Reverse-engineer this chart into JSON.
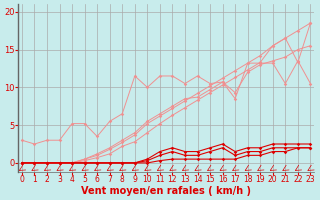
{
  "background_color": "#c8ecec",
  "grid_color": "#aaaaaa",
  "xlabel": "Vent moyen/en rafales ( km/h )",
  "yticks": [
    0,
    5,
    10,
    15,
    20
  ],
  "xticks": [
    0,
    1,
    2,
    3,
    4,
    5,
    6,
    7,
    8,
    9,
    10,
    11,
    12,
    13,
    14,
    15,
    16,
    17,
    18,
    19,
    20,
    21,
    22,
    23
  ],
  "xlim": [
    -0.3,
    23.3
  ],
  "ylim": [
    -1.2,
    21
  ],
  "lines_light": [
    [
      0,
      1,
      2,
      3,
      4,
      5,
      6,
      7,
      8,
      9,
      10,
      11,
      12,
      13,
      14,
      15,
      16,
      17,
      18,
      19,
      20,
      21,
      22,
      23
    ],
    [
      3.0,
      2.5,
      3.0,
      3.0,
      5.2,
      5.2,
      3.5,
      5.5,
      6.5,
      11.5,
      10.0,
      11.5,
      11.5,
      10.5,
      11.5,
      10.5,
      10.7,
      8.5,
      13.2,
      13.2,
      13.2,
      10.5,
      13.5,
      10.5
    ]
  ],
  "lines_light2": [
    [
      0,
      1,
      2,
      3,
      4,
      5,
      6,
      7,
      8,
      9,
      10,
      11,
      12,
      13,
      14,
      15,
      16,
      17,
      18,
      19,
      20,
      21,
      22,
      23
    ],
    [
      0.0,
      0.0,
      0.0,
      0.0,
      0.0,
      0.3,
      0.7,
      1.2,
      2.2,
      2.8,
      4.0,
      5.2,
      6.3,
      7.3,
      8.3,
      9.3,
      10.3,
      11.3,
      12.3,
      13.3,
      15.5,
      16.5,
      13.3,
      18.5
    ]
  ],
  "lines_light3": [
    [
      0,
      1,
      2,
      3,
      4,
      5,
      6,
      7,
      8,
      9,
      10,
      11,
      12,
      13,
      14,
      15,
      16,
      17,
      18,
      19,
      20,
      21,
      22,
      23
    ],
    [
      0.0,
      0.0,
      0.0,
      0.0,
      0.0,
      0.5,
      1.2,
      2.0,
      3.0,
      4.0,
      5.5,
      6.5,
      7.5,
      8.5,
      8.7,
      9.7,
      10.7,
      9.3,
      12.0,
      13.0,
      13.5,
      14.0,
      15.0,
      15.5
    ]
  ],
  "lines_light4": [
    [
      0,
      1,
      2,
      3,
      4,
      5,
      6,
      7,
      8,
      9,
      10,
      11,
      12,
      13,
      14,
      15,
      16,
      17,
      18,
      19,
      20,
      21,
      22,
      23
    ],
    [
      0.0,
      0.0,
      0.0,
      0.0,
      0.0,
      0.5,
      1.0,
      1.8,
      2.7,
      3.7,
      5.2,
      6.2,
      7.2,
      8.2,
      9.2,
      10.2,
      11.2,
      12.2,
      13.2,
      14.2,
      15.5,
      16.5,
      17.5,
      18.5
    ]
  ],
  "lines_dark": [
    [
      0,
      1,
      2,
      3,
      4,
      5,
      6,
      7,
      8,
      9,
      10,
      11,
      12,
      13,
      14,
      15,
      16,
      17,
      18,
      19,
      20,
      21,
      22,
      23
    ],
    [
      0.0,
      0.0,
      0.0,
      0.0,
      0.0,
      0.0,
      0.0,
      0.0,
      0.0,
      0.0,
      0.5,
      1.5,
      2.0,
      1.5,
      1.5,
      2.0,
      2.5,
      1.5,
      2.0,
      2.0,
      2.5,
      2.5,
      2.5,
      2.5
    ]
  ],
  "lines_dark2": [
    [
      0,
      1,
      2,
      3,
      4,
      5,
      6,
      7,
      8,
      9,
      10,
      11,
      12,
      13,
      14,
      15,
      16,
      17,
      18,
      19,
      20,
      21,
      22,
      23
    ],
    [
      0.0,
      0.0,
      0.0,
      0.0,
      0.0,
      0.0,
      0.0,
      0.0,
      0.0,
      0.0,
      0.3,
      1.0,
      1.5,
      1.0,
      1.0,
      1.5,
      2.0,
      1.0,
      1.5,
      1.5,
      2.0,
      2.0,
      2.0,
      2.0
    ]
  ],
  "lines_dark3": [
    [
      0,
      1,
      2,
      3,
      4,
      5,
      6,
      7,
      8,
      9,
      10,
      11,
      12,
      13,
      14,
      15,
      16,
      17,
      18,
      19,
      20,
      21,
      22,
      23
    ],
    [
      0.0,
      0.0,
      0.0,
      0.0,
      0.0,
      0.0,
      0.0,
      0.0,
      0.0,
      0.0,
      0.0,
      0.3,
      0.5,
      0.5,
      0.5,
      0.5,
      0.5,
      0.5,
      1.0,
      1.0,
      1.5,
      1.5,
      2.0,
      2.0
    ]
  ],
  "color_light": "#f09090",
  "color_dark": "#dd0000",
  "xlabel_fontsize": 7,
  "tick_fontsize": 5.5,
  "ytick_fontsize": 6
}
